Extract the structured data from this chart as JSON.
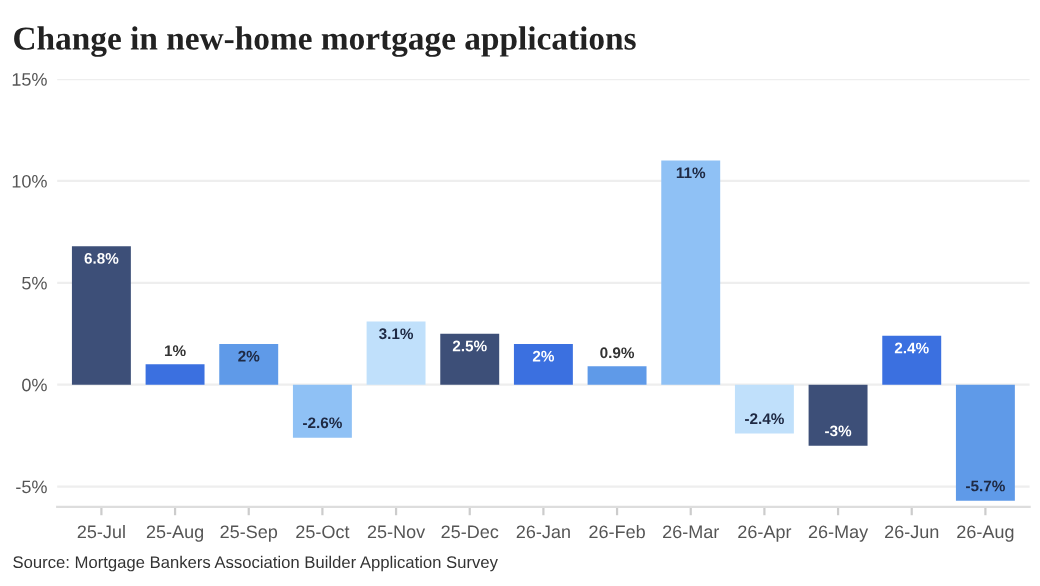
{
  "chart_data": {
    "type": "bar",
    "title": "Change in new-home mortgage applications",
    "categories": [
      "25-Jul",
      "25-Aug",
      "25-Sep",
      "25-Oct",
      "25-Nov",
      "25-Dec",
      "26-Jan",
      "26-Feb",
      "26-Mar",
      "26-Apr",
      "26-May",
      "26-Jun",
      "26-Aug"
    ],
    "values": [
      6.8,
      1,
      2,
      -2.6,
      3.1,
      2.5,
      2,
      0.9,
      11,
      -2.4,
      -3,
      2.4,
      -5.7
    ],
    "colors": [
      "#3d4f78",
      "#3b70e0",
      "#5f9ae8",
      "#8fc1f5",
      "#c0e0fb",
      "#3d4f78",
      "#3b70e0",
      "#5f9ae8",
      "#8fc1f5",
      "#c0e0fb",
      "#3d4f78",
      "#3b70e0",
      "#5f9ae8"
    ],
    "value_labels": [
      "6.8%",
      "1%",
      "2%",
      "-2.6%",
      "3.1%",
      "2.5%",
      "2%",
      "0.9%",
      "11%",
      "-2.4%",
      "-3%",
      "2.4%",
      "-5.7%"
    ],
    "ylim": [
      -6,
      15
    ],
    "yticks": [
      {
        "value": -5,
        "label": "-5%"
      },
      {
        "value": 0,
        "label": "0%"
      },
      {
        "value": 5,
        "label": "5%"
      },
      {
        "value": 10,
        "label": "10%"
      },
      {
        "value": 15,
        "label": "15%"
      }
    ],
    "grid": "y",
    "annotations": [
      "Source: Mortgage Bankers Association Builder Application Survey"
    ]
  }
}
